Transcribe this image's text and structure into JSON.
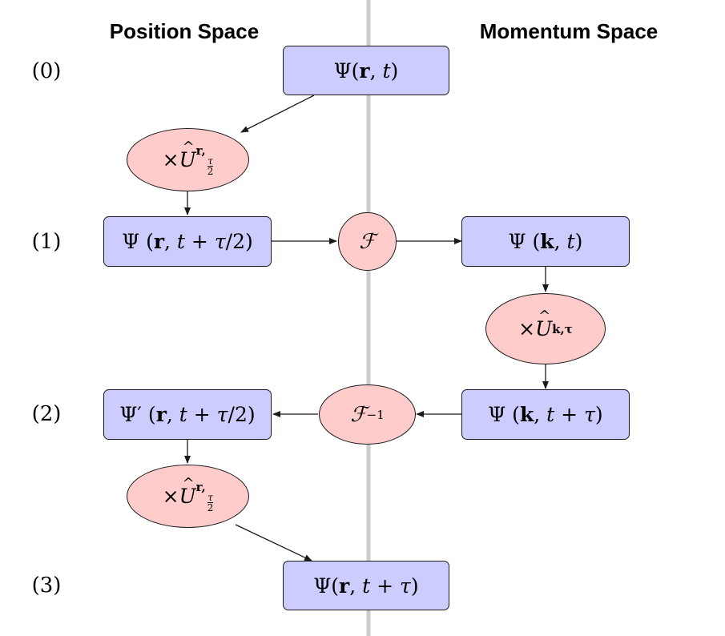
{
  "headers": {
    "position_space": "Position Space",
    "momentum_space": "Momentum Space"
  },
  "steps": [
    "(0)",
    "(1)",
    "(2)",
    "(3)"
  ],
  "nodes": {
    "psi_r_t": {
      "psi": "Ψ",
      "args": "r, t"
    },
    "psi_r_half": {
      "psi": "Ψ",
      "args": "r, t + τ/2"
    },
    "psi_k_t": {
      "psi": "Ψ",
      "args": "k, t"
    },
    "psi_k_tau": {
      "psi": "Ψ",
      "args": "k, t + τ"
    },
    "psi_prime_r_half": {
      "psi": "Ψ′",
      "args": "r, t + τ/2"
    },
    "psi_r_tau": {
      "psi": "Ψ",
      "args": "r, t + τ"
    },
    "op_ur_half_1": {
      "times": "×",
      "U": "U",
      "sub": "r,",
      "frac_num": "τ",
      "frac_den": "2"
    },
    "op_fourier": {
      "symbol": "ℱ"
    },
    "op_uk_tau": {
      "times": "×",
      "U": "U",
      "sub": "k,τ"
    },
    "op_inverse_fourier": {
      "symbol": "ℱ",
      "exp": "−1"
    },
    "op_ur_half_2": {
      "times": "×",
      "U": "U",
      "sub": "r,",
      "frac_num": "τ",
      "frac_den": "2"
    }
  },
  "colors": {
    "state_fill": "#ccccff",
    "operator_fill": "#ffcccc",
    "divider": "#cccccc",
    "stroke": "#1a1a1a"
  }
}
